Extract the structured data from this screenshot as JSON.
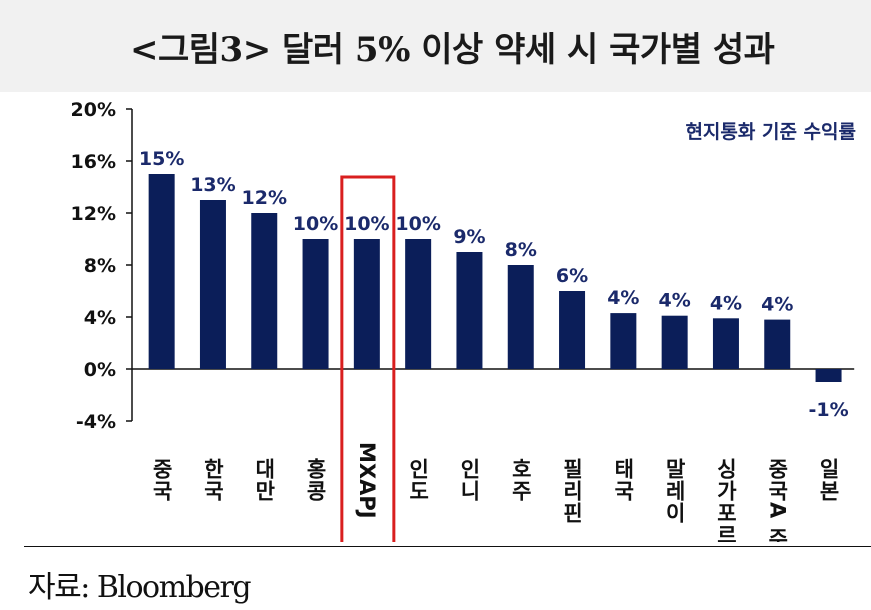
{
  "title": "<그림3> 달러 5% 이상 약세 시 국가별 성과",
  "source": "자료: Bloomberg",
  "colors": {
    "bar": "#0b1e59",
    "label": "#1b2a6b",
    "highlight": "#d91f1f",
    "axis": "#111111"
  },
  "chart_data": {
    "type": "bar",
    "annotation": "현지통화 기준 수익률",
    "categories": [
      "중국",
      "한국",
      "대만",
      "홍콩",
      "MXAPJ",
      "인도",
      "인니",
      "호주",
      "필리핀",
      "태국",
      "말레이",
      "싱가포르",
      "중국A 주",
      "일본"
    ],
    "values": [
      15,
      13,
      12,
      10,
      10,
      10,
      9,
      8,
      6,
      4.3,
      4.1,
      3.9,
      3.8,
      -1
    ],
    "data_labels": [
      "15%",
      "13%",
      "12%",
      "10%",
      "10%",
      "10%",
      "9%",
      "8%",
      "6%",
      "4%",
      "4%",
      "4%",
      "4%",
      "-1%"
    ],
    "y_ticks": [
      "20%",
      "16%",
      "12%",
      "8%",
      "4%",
      "0%",
      "-4%"
    ],
    "ylim": [
      -4,
      20
    ],
    "highlighted_category": "MXAPJ",
    "grid": false,
    "legend": "none"
  }
}
